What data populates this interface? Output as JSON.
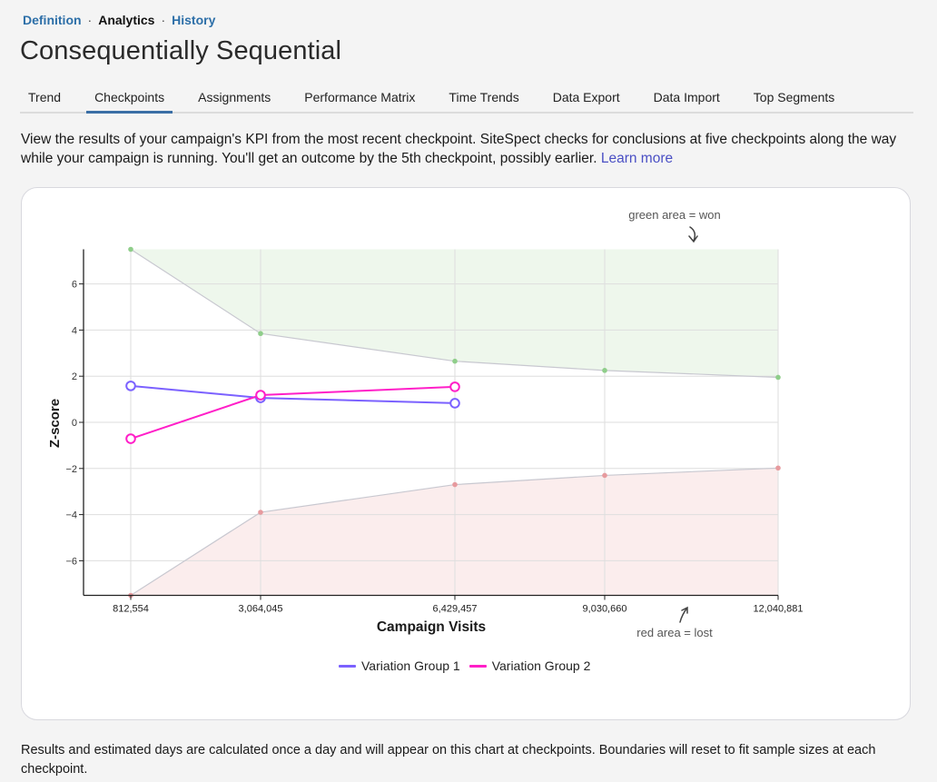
{
  "breadcrumb": {
    "items": [
      {
        "label": "Definition",
        "active": false
      },
      {
        "label": "Analytics",
        "active": true
      },
      {
        "label": "History",
        "active": false
      }
    ],
    "separator": "·"
  },
  "page": {
    "title": "Consequentially Sequential"
  },
  "tabs": [
    {
      "label": "Trend",
      "active": false
    },
    {
      "label": "Checkpoints",
      "active": true
    },
    {
      "label": "Assignments",
      "active": false
    },
    {
      "label": "Performance Matrix",
      "active": false
    },
    {
      "label": "Time Trends",
      "active": false
    },
    {
      "label": "Data Export",
      "active": false
    },
    {
      "label": "Data Import",
      "active": false
    },
    {
      "label": "Top Segments",
      "active": false
    }
  ],
  "intro": {
    "text": "View the results of your campaign's KPI from the most recent checkpoint. SiteSpect checks for conclusions at five checkpoints along the way while your campaign is running. You'll get an outcome by the 5th checkpoint, possibly earlier. ",
    "link_label": "Learn more"
  },
  "footnote": {
    "text": "Results and estimated days are calculated once a day and will appear on this chart at checkpoints. Boundaries will reset to fit sample sizes at each checkpoint."
  },
  "colors": {
    "variation_group_1": "#7b61ff",
    "variation_group_2": "#ff1fc8",
    "won_area": "#eef7ec",
    "won_point": "#8fce8a",
    "lost_area": "#fbeded",
    "lost_point": "#e79a9e",
    "boundary_line": "#c8c8d0",
    "link": "#2d6fa8"
  },
  "chart_data": {
    "type": "line",
    "title": "",
    "xlabel": "Campaign Visits",
    "ylabel": "Z-score",
    "x": [
      812554,
      3064045,
      6429457,
      9030660,
      12040881
    ],
    "x_tick_labels": [
      "812,554",
      "3,064,045",
      "6,429,457",
      "9,030,660",
      "12,040,881"
    ],
    "y_ticks": [
      6,
      4,
      2,
      0,
      -2,
      -4,
      -6
    ],
    "y_tick_labels": [
      "6",
      "4",
      "2",
      "0",
      "−2",
      "−4",
      "−6"
    ],
    "ylim": [
      -7.5,
      7.5
    ],
    "grid": true,
    "legend_position": "bottom",
    "series": [
      {
        "name": "Variation Group 1",
        "x": [
          812554,
          3064045,
          6429457
        ],
        "values": [
          1.58,
          1.06,
          0.83
        ],
        "color": "#7b61ff"
      },
      {
        "name": "Variation Group 2",
        "x": [
          812554,
          3064045,
          6429457
        ],
        "values": [
          -0.71,
          1.18,
          1.54
        ],
        "color": "#ff1fc8"
      }
    ],
    "boundaries": {
      "upper_won": {
        "x": [
          812554,
          3064045,
          6429457,
          9030660,
          12040881
        ],
        "values": [
          7.5,
          3.85,
          2.65,
          2.25,
          1.95
        ]
      },
      "lower_lost": {
        "x": [
          812554,
          3064045,
          6429457,
          9030660,
          12040881
        ],
        "values": [
          -7.5,
          -3.9,
          -2.7,
          -2.3,
          -1.98
        ]
      }
    },
    "annotations": [
      {
        "text": "green area = won",
        "position": "top-right"
      },
      {
        "text": "red area = lost",
        "position": "bottom-right"
      }
    ]
  }
}
